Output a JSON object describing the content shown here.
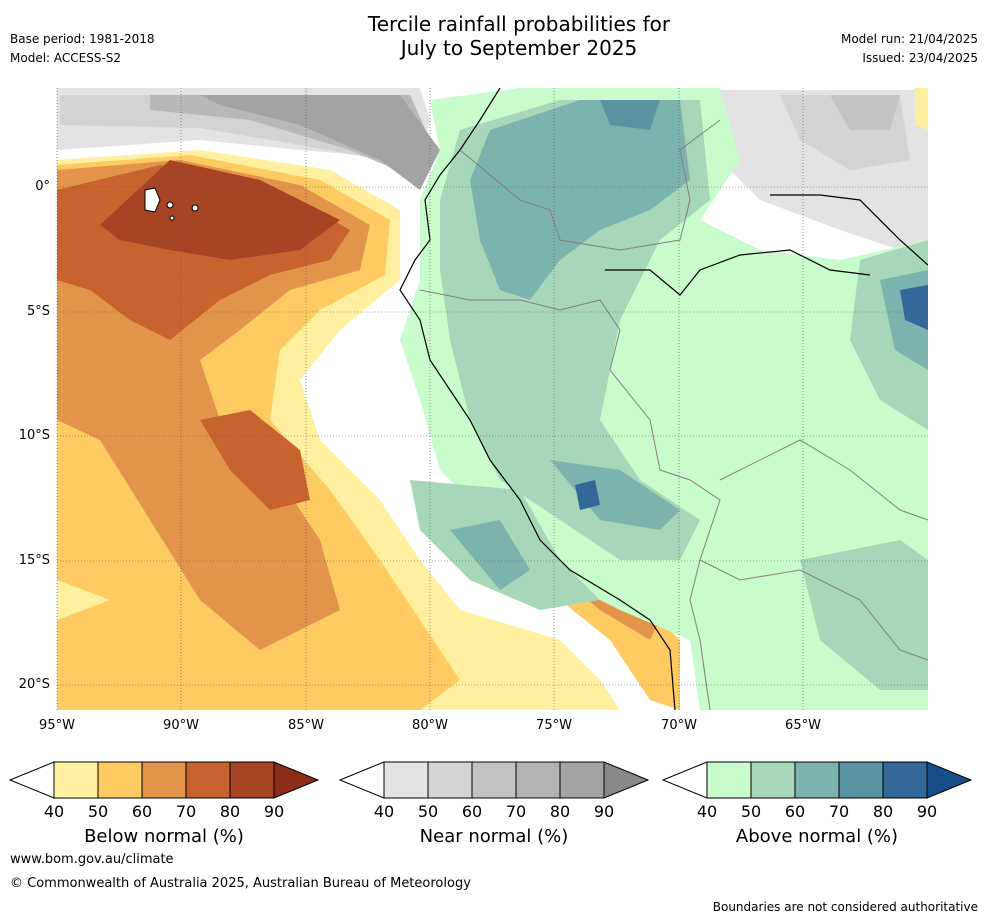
{
  "header": {
    "title_line1": "Tercile rainfall probabilities for",
    "title_line2": "July to September 2025",
    "base_period": "Base period: 1981-2018",
    "model": "Model: ACCESS-S2",
    "model_run": "Model run: 21/04/2025",
    "issued": "Issued: 23/04/2025"
  },
  "map": {
    "lat_labels": [
      "0°",
      "5°S",
      "10°S",
      "15°S",
      "20°S"
    ],
    "lon_labels": [
      "95°W",
      "90°W",
      "85°W",
      "80°W",
      "75°W",
      "70°W",
      "65°W"
    ],
    "lon_range": [
      -95,
      -60
    ],
    "lat_range": [
      -21,
      4
    ]
  },
  "legends": [
    {
      "label": "Below normal (%)",
      "ticks": [
        "40",
        "50",
        "60",
        "70",
        "80",
        "90"
      ],
      "colors": [
        "#fff0a0",
        "#fecb63",
        "#e2954a",
        "#c8622f",
        "#a64424",
        "#8c2d18"
      ]
    },
    {
      "label": "Near normal (%)",
      "ticks": [
        "40",
        "50",
        "60",
        "70",
        "80",
        "90"
      ],
      "colors": [
        "#e3e3e3",
        "#d3d3d3",
        "#c3c3c3",
        "#b3b3b3",
        "#a3a3a3",
        "#888888"
      ]
    },
    {
      "label": "Above normal (%)",
      "ticks": [
        "40",
        "50",
        "60",
        "70",
        "80",
        "90"
      ],
      "colors": [
        "#c9fccc",
        "#a5d7b8",
        "#7db3ae",
        "#5a94a1",
        "#336898",
        "#174f88"
      ]
    }
  ],
  "footer": {
    "url": "www.bom.gov.au/climate",
    "copyright": "© Commonwealth of Australia 2025, Australian Bureau of Meteorology",
    "disclaimer": "Boundaries are not considered authoritative"
  }
}
